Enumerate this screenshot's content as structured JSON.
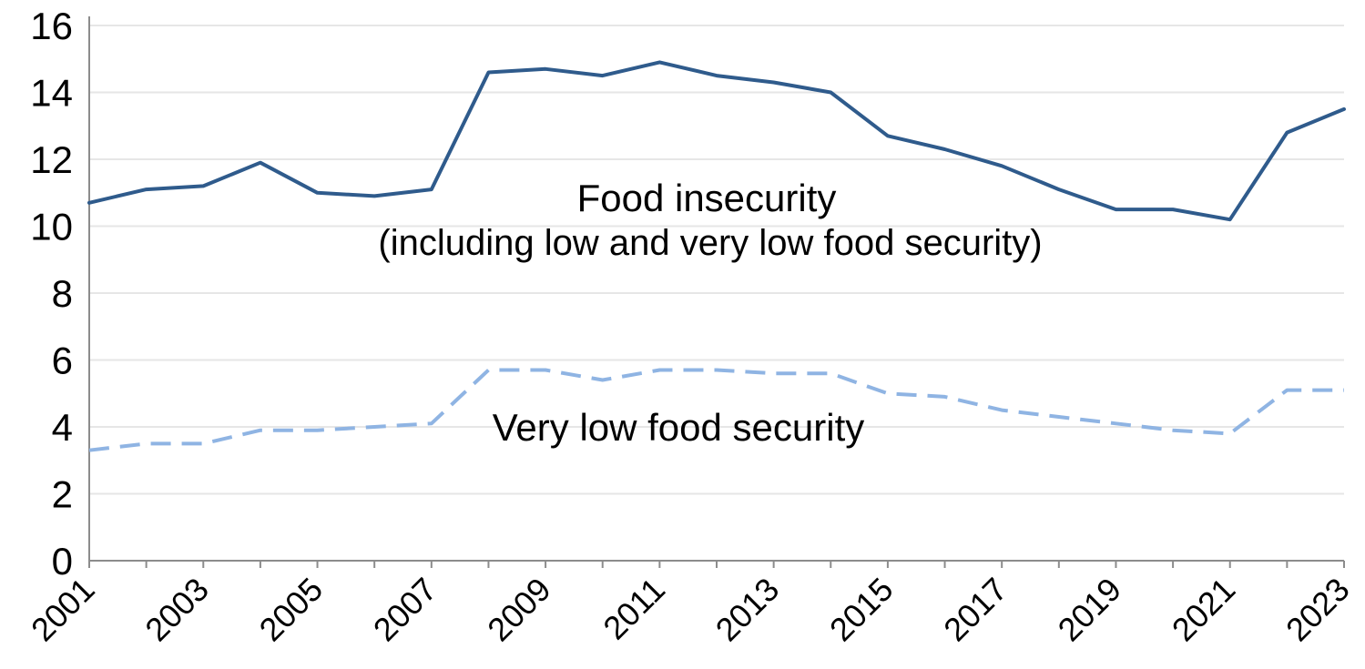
{
  "chart_data": {
    "type": "line",
    "title": "",
    "xlabel": "",
    "ylabel": "",
    "x": [
      2001,
      2002,
      2003,
      2004,
      2005,
      2006,
      2007,
      2008,
      2009,
      2010,
      2011,
      2012,
      2013,
      2014,
      2015,
      2016,
      2017,
      2018,
      2019,
      2020,
      2021,
      2022,
      2023
    ],
    "x_tick_labels": [
      "2001",
      "2003",
      "2005",
      "2007",
      "2009",
      "2011",
      "2013",
      "2015",
      "2017",
      "2019",
      "2021",
      "2023"
    ],
    "y_tick_labels": [
      "0",
      "2",
      "4",
      "6",
      "8",
      "10",
      "12",
      "14",
      "16"
    ],
    "ylim": [
      0,
      16
    ],
    "grid": true,
    "series": [
      {
        "key": "food_insecurity",
        "color": "#2f5b8c",
        "style": "solid",
        "values": [
          10.7,
          11.1,
          11.2,
          11.9,
          11.0,
          10.9,
          11.1,
          14.6,
          14.7,
          14.5,
          14.9,
          14.5,
          14.3,
          14.0,
          12.7,
          12.3,
          11.8,
          11.1,
          10.5,
          10.5,
          10.2,
          12.8,
          13.5
        ]
      },
      {
        "key": "very_low_food_security",
        "color": "#8fb4e3",
        "style": "dashed",
        "values": [
          3.3,
          3.5,
          3.5,
          3.9,
          3.9,
          4.0,
          4.1,
          5.7,
          5.7,
          5.4,
          5.7,
          5.7,
          5.6,
          5.6,
          5.0,
          4.9,
          4.5,
          4.3,
          4.1,
          3.9,
          3.8,
          5.1,
          5.1
        ]
      }
    ],
    "annotations": [
      {
        "key": "food_insecurity_label",
        "line1": "Food insecurity",
        "line2": "(including low and very low food security)"
      },
      {
        "key": "very_low_label",
        "line1": "Very low food security"
      }
    ]
  }
}
